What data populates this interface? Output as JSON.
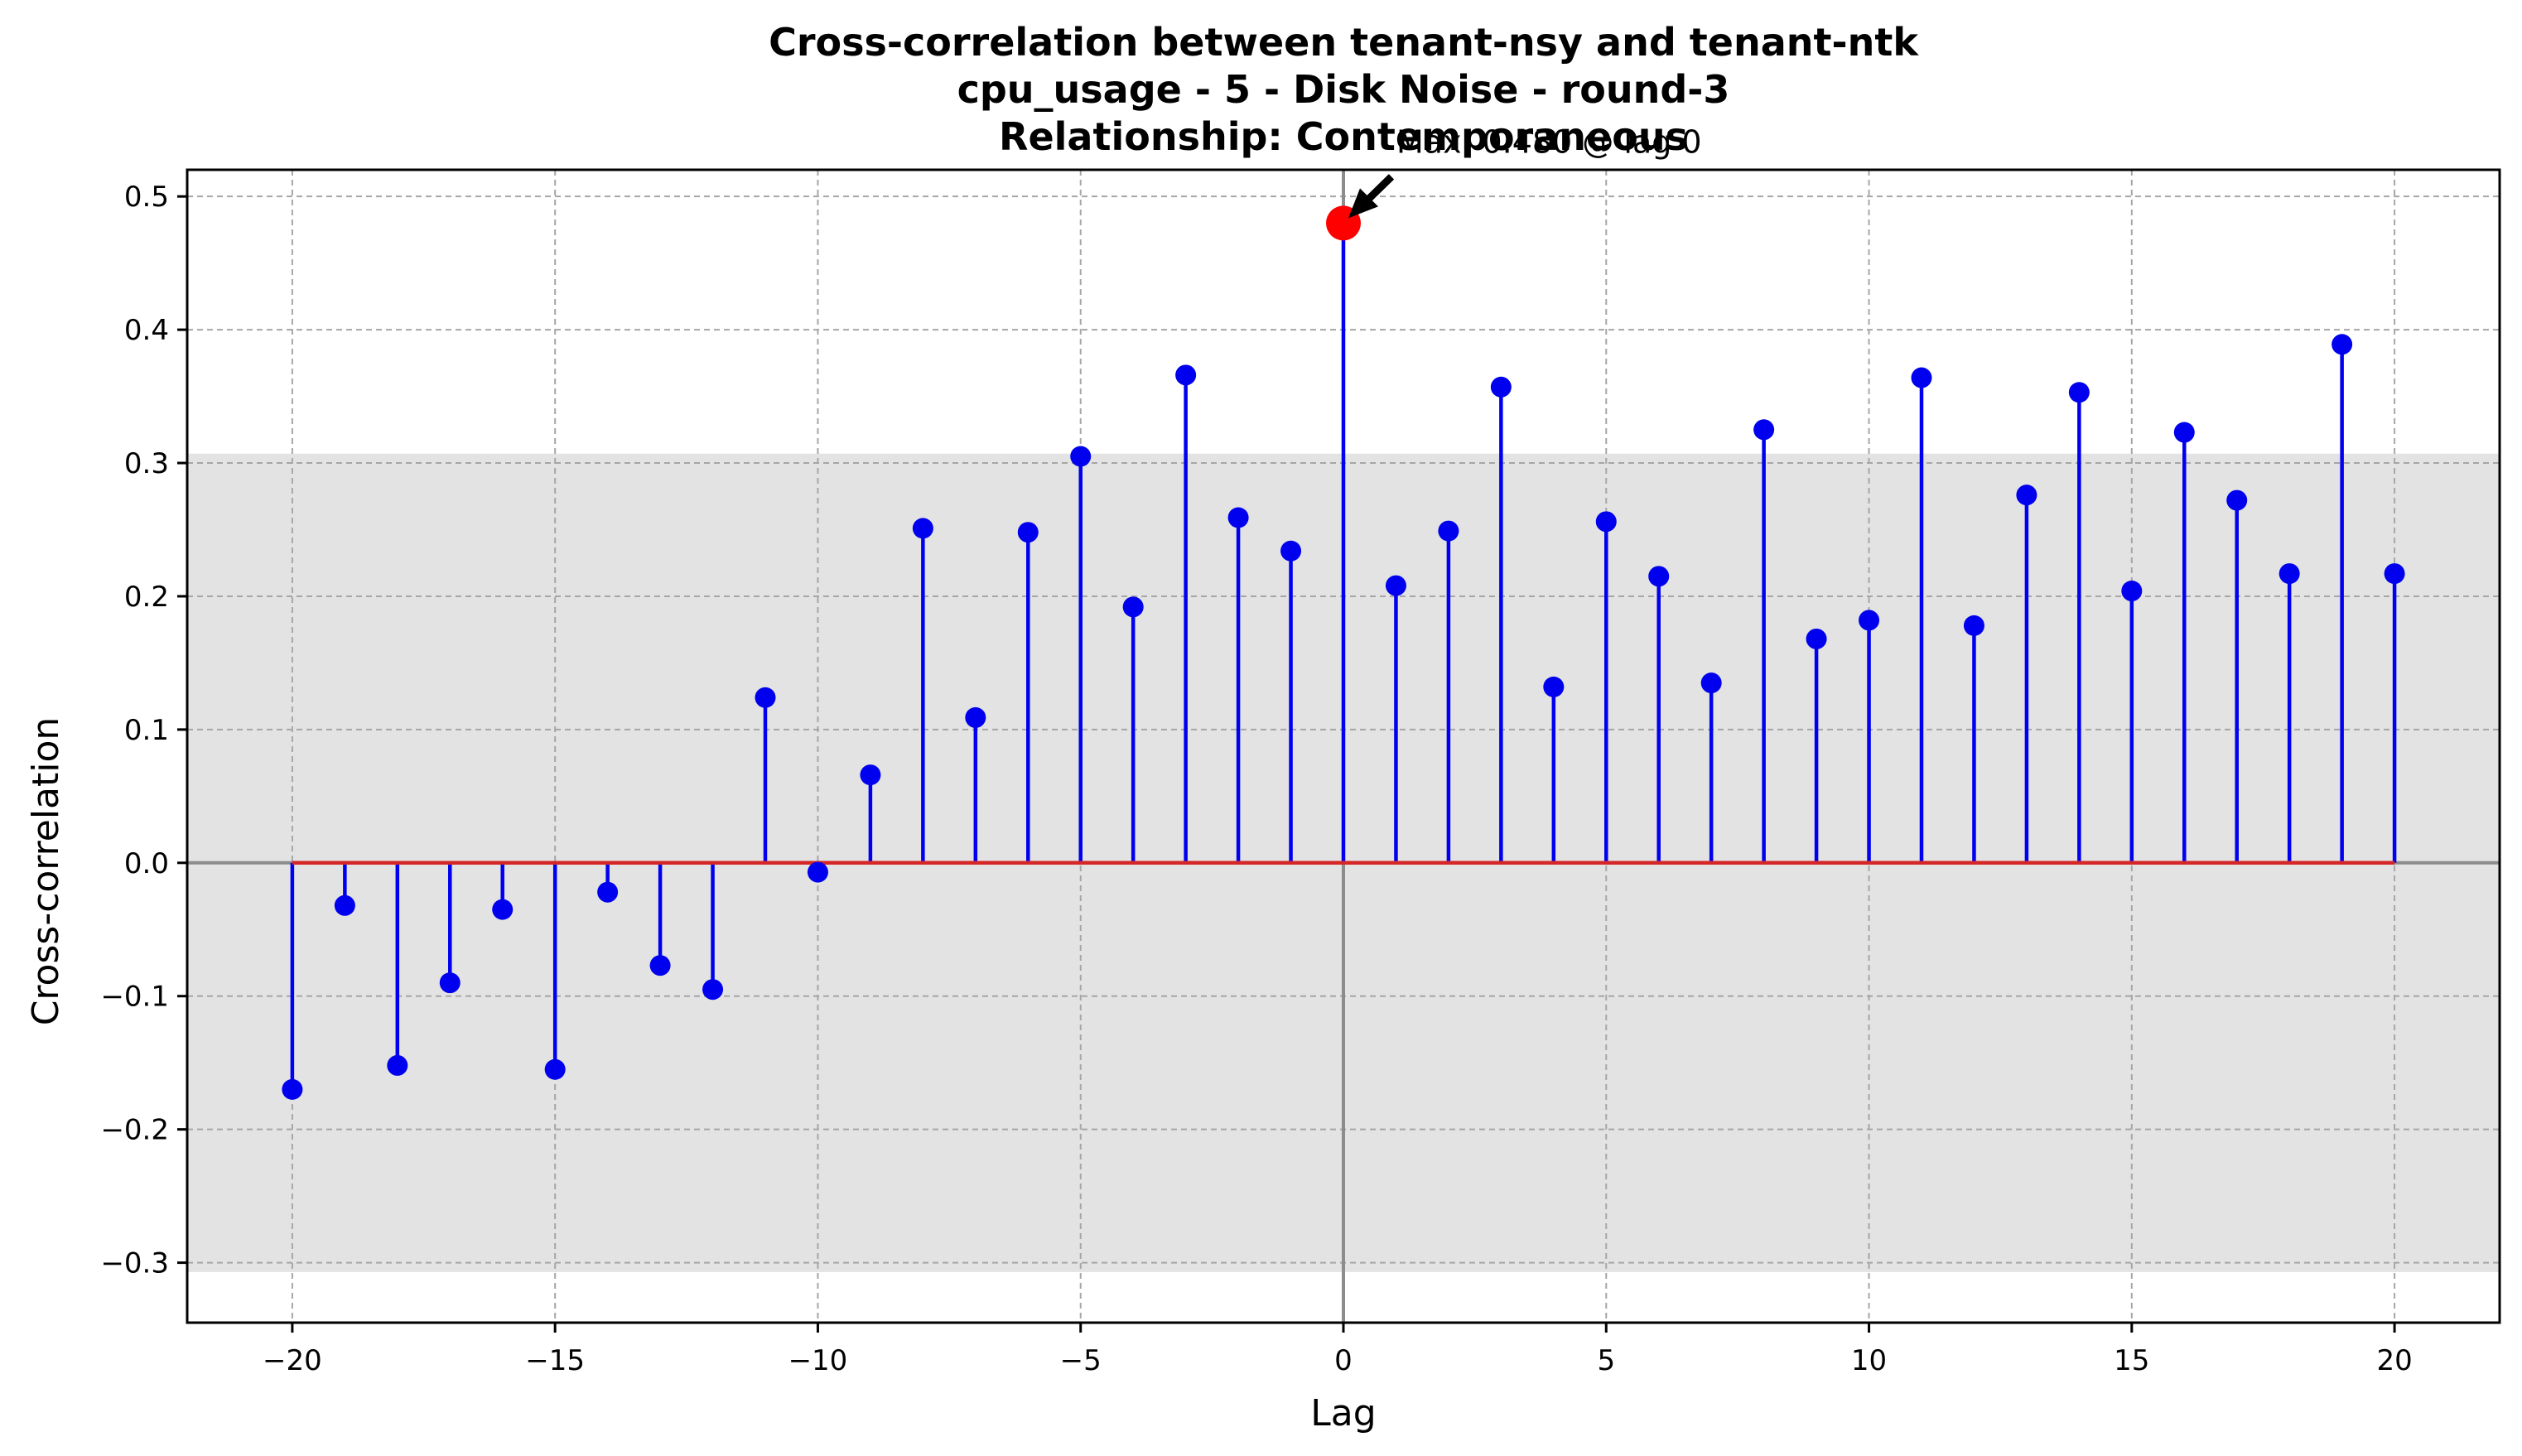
{
  "chart_data": {
    "type": "stem",
    "title_lines": [
      "Cross-correlation between tenant-nsy and tenant-ntk",
      "cpu_usage - 5 - Disk Noise - round-3",
      "Relationship: Contemporaneous"
    ],
    "xlabel": "Lag",
    "ylabel": "Cross-correlation",
    "xlim": [
      -22,
      22
    ],
    "ylim": [
      -0.345,
      0.52
    ],
    "xticks": [
      -20,
      -15,
      -10,
      -5,
      0,
      5,
      10,
      15,
      20
    ],
    "xtick_labels": [
      "−20",
      "−15",
      "−10",
      "−5",
      "0",
      "5",
      "10",
      "15",
      "20"
    ],
    "yticks": [
      -0.3,
      -0.2,
      -0.1,
      0.0,
      0.1,
      0.2,
      0.3,
      0.4,
      0.5
    ],
    "ytick_labels": [
      "−0.3",
      "−0.2",
      "−0.1",
      "0.0",
      "0.1",
      "0.2",
      "0.3",
      "0.4",
      "0.5"
    ],
    "grid": true,
    "confidence_band": [
      -0.307,
      0.307
    ],
    "lags": [
      -20,
      -19,
      -18,
      -17,
      -16,
      -15,
      -14,
      -13,
      -12,
      -11,
      -10,
      -9,
      -8,
      -7,
      -6,
      -5,
      -4,
      -3,
      -2,
      -1,
      0,
      1,
      2,
      3,
      4,
      5,
      6,
      7,
      8,
      9,
      10,
      11,
      12,
      13,
      14,
      15,
      16,
      17,
      18,
      19,
      20
    ],
    "values": [
      -0.17,
      -0.032,
      -0.152,
      -0.09,
      -0.035,
      -0.155,
      -0.022,
      -0.077,
      -0.095,
      0.124,
      -0.007,
      0.066,
      0.251,
      0.109,
      0.248,
      0.305,
      0.192,
      0.366,
      0.259,
      0.234,
      0.48,
      0.208,
      0.249,
      0.357,
      0.132,
      0.256,
      0.215,
      0.135,
      0.325,
      0.168,
      0.182,
      0.364,
      0.178,
      0.276,
      0.353,
      0.204,
      0.323,
      0.272,
      0.217,
      0.389,
      0.217
    ],
    "max_point": {
      "lag": 0,
      "value": 0.48
    },
    "annotation": "Max: 0.480 @ lag 0",
    "colors": {
      "stem": "#0000ee",
      "marker": "#0000ee",
      "baseline": "#d62728",
      "max_marker": "#ff0000",
      "band": "#e3e3e3",
      "grid": "#a6a6a6",
      "zero_lines": "#8c8c8c"
    }
  }
}
